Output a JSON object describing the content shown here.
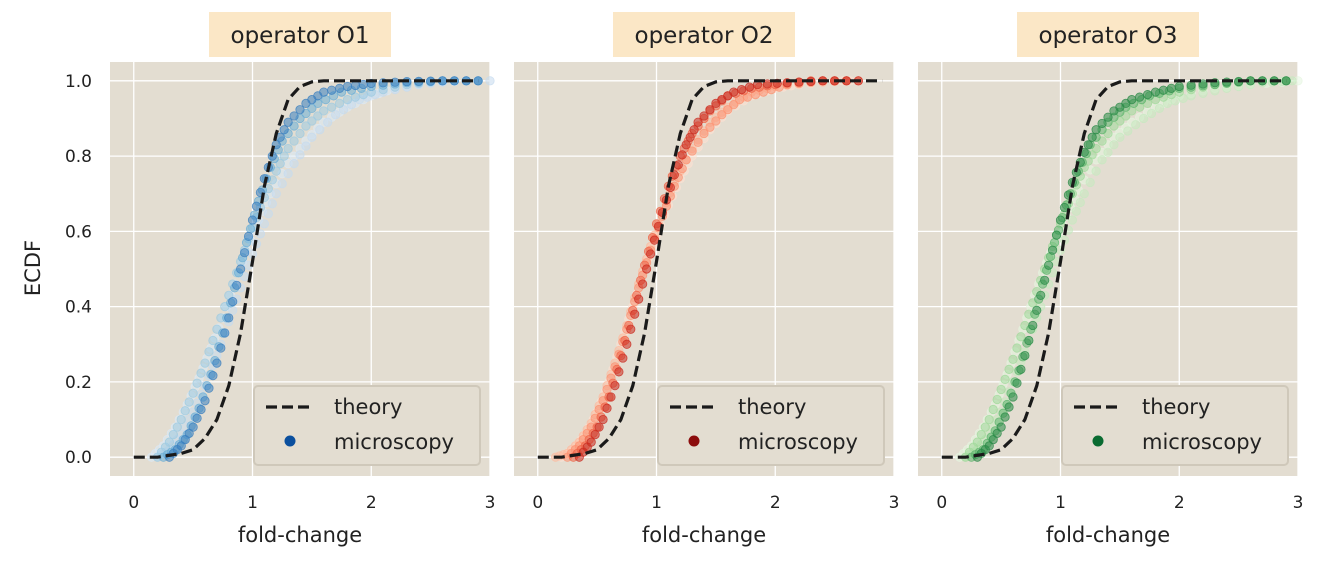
{
  "figure": {
    "ylabel": "ECDF",
    "xlabel": "fold-change"
  },
  "colors": {
    "background": "#e3ddd1",
    "title_box": "#fbe7c6",
    "grid": "#ffffff",
    "theory_line": "#1a1a1a"
  },
  "chart_data": [
    {
      "type": "scatter",
      "title": "operator O1",
      "xlabel": "fold-change",
      "ylabel": "ECDF",
      "xlim": [
        -0.2,
        3
      ],
      "ylim": [
        -0.05,
        1.05
      ],
      "xticks": [
        "0",
        "1",
        "2",
        "3"
      ],
      "yticks": [
        "0.0",
        "0.2",
        "0.4",
        "0.6",
        "0.8",
        "1.0"
      ],
      "grid": true,
      "legend": {
        "placement": "lower-right",
        "entries": [
          "theory",
          "microscopy"
        ]
      },
      "series": [
        {
          "name": "theory",
          "style": "dashed-line",
          "color": "#1a1a1a",
          "x": [
            0,
            0.2,
            0.4,
            0.5,
            0.6,
            0.7,
            0.8,
            0.9,
            1.0,
            1.1,
            1.2,
            1.3,
            1.4,
            1.5,
            1.6,
            1.8,
            2.0,
            2.5,
            2.9
          ],
          "y": [
            0,
            0.0,
            0.01,
            0.02,
            0.05,
            0.1,
            0.19,
            0.33,
            0.52,
            0.72,
            0.86,
            0.95,
            0.985,
            0.997,
            1.0,
            1.0,
            1.0,
            1.0,
            1.0
          ]
        },
        {
          "name": "microscopy",
          "style": "markers",
          "color": "#0b4f9e",
          "curves": [
            {
              "color": "#dbe9f6",
              "x": [
                0.15,
                0.25,
                0.35,
                0.45,
                0.55,
                0.65,
                0.75,
                0.85,
                0.95,
                1.05,
                1.15,
                1.3,
                1.45,
                1.6,
                1.8,
                2.0,
                2.2,
                2.5,
                2.8
              ],
              "y": [
                0.0,
                0.03,
                0.08,
                0.14,
                0.21,
                0.29,
                0.37,
                0.46,
                0.55,
                0.63,
                0.7,
                0.78,
                0.84,
                0.89,
                0.93,
                0.96,
                0.98,
                0.995,
                1.0
              ]
            },
            {
              "color": "#c6dbef",
              "x": [
                0.2,
                0.3,
                0.4,
                0.5,
                0.6,
                0.7,
                0.8,
                0.9,
                1.0,
                1.1,
                1.2,
                1.35,
                1.5,
                1.7,
                1.9,
                2.1,
                2.4,
                2.7,
                3.0
              ],
              "y": [
                0.0,
                0.02,
                0.06,
                0.12,
                0.19,
                0.27,
                0.36,
                0.45,
                0.54,
                0.62,
                0.7,
                0.78,
                0.85,
                0.91,
                0.95,
                0.97,
                0.99,
                1.0,
                1.0
              ]
            },
            {
              "color": "#9ecae1",
              "x": [
                0.2,
                0.3,
                0.4,
                0.5,
                0.6,
                0.7,
                0.8,
                0.9,
                1.0,
                1.1,
                1.2,
                1.3,
                1.45,
                1.6,
                1.8,
                2.0,
                2.3,
                2.6,
                2.9
              ],
              "y": [
                0.0,
                0.04,
                0.1,
                0.17,
                0.25,
                0.34,
                0.43,
                0.52,
                0.61,
                0.69,
                0.76,
                0.82,
                0.88,
                0.92,
                0.95,
                0.97,
                0.99,
                1.0,
                1.0
              ]
            },
            {
              "color": "#6baed6",
              "x": [
                0.25,
                0.35,
                0.45,
                0.55,
                0.65,
                0.75,
                0.85,
                0.95,
                1.05,
                1.15,
                1.25,
                1.4,
                1.55,
                1.75,
                2.0,
                2.3,
                2.6,
                2.9
              ],
              "y": [
                0.0,
                0.02,
                0.06,
                0.13,
                0.22,
                0.33,
                0.45,
                0.57,
                0.68,
                0.77,
                0.84,
                0.9,
                0.94,
                0.97,
                0.985,
                0.995,
                1.0,
                1.0
              ]
            },
            {
              "color": "#3b7fbf",
              "x": [
                0.3,
                0.4,
                0.5,
                0.6,
                0.7,
                0.8,
                0.9,
                1.0,
                1.1,
                1.2,
                1.3,
                1.45,
                1.6,
                1.8,
                2.0,
                2.3,
                2.6,
                2.9
              ],
              "y": [
                0.0,
                0.03,
                0.08,
                0.15,
                0.25,
                0.37,
                0.5,
                0.63,
                0.74,
                0.83,
                0.89,
                0.94,
                0.97,
                0.985,
                0.993,
                0.998,
                1.0,
                1.0
              ]
            }
          ]
        }
      ]
    },
    {
      "type": "scatter",
      "title": "operator O2",
      "xlabel": "fold-change",
      "ylabel": "",
      "xlim": [
        -0.2,
        3
      ],
      "ylim": [
        -0.05,
        1.05
      ],
      "xticks": [
        "0",
        "1",
        "2",
        "3"
      ],
      "yticks": [],
      "grid": true,
      "legend": {
        "placement": "lower-right",
        "entries": [
          "theory",
          "microscopy"
        ]
      },
      "series": [
        {
          "name": "theory",
          "style": "dashed-line",
          "color": "#1a1a1a",
          "x": [
            0,
            0.2,
            0.4,
            0.5,
            0.6,
            0.7,
            0.8,
            0.9,
            1.0,
            1.1,
            1.2,
            1.3,
            1.4,
            1.5,
            1.6,
            1.8,
            2.0,
            2.5,
            2.9
          ],
          "y": [
            0,
            0.0,
            0.01,
            0.02,
            0.05,
            0.1,
            0.19,
            0.33,
            0.52,
            0.72,
            0.86,
            0.95,
            0.985,
            0.997,
            1.0,
            1.0,
            1.0,
            1.0,
            1.0
          ]
        },
        {
          "name": "microscopy",
          "style": "markers",
          "color": "#8c0d0d",
          "curves": [
            {
              "color": "#fde0d2",
              "x": [
                0.2,
                0.3,
                0.4,
                0.5,
                0.6,
                0.7,
                0.8,
                0.9,
                1.0,
                1.1,
                1.2,
                1.3,
                1.45,
                1.6,
                1.8,
                2.0,
                2.2,
                2.5,
                2.7
              ],
              "y": [
                0.0,
                0.02,
                0.06,
                0.12,
                0.2,
                0.3,
                0.4,
                0.5,
                0.59,
                0.67,
                0.74,
                0.8,
                0.87,
                0.92,
                0.96,
                0.98,
                0.99,
                1.0,
                1.0
              ]
            },
            {
              "color": "#fcbba1",
              "x": [
                0.15,
                0.25,
                0.35,
                0.45,
                0.55,
                0.65,
                0.75,
                0.85,
                0.95,
                1.05,
                1.15,
                1.3,
                1.45,
                1.6,
                1.8,
                2.0,
                2.3,
                2.6
              ],
              "y": [
                0.0,
                0.01,
                0.04,
                0.09,
                0.16,
                0.25,
                0.35,
                0.46,
                0.56,
                0.65,
                0.73,
                0.82,
                0.89,
                0.93,
                0.97,
                0.985,
                0.995,
                1.0
              ]
            },
            {
              "color": "#fc9272",
              "x": [
                0.25,
                0.35,
                0.45,
                0.55,
                0.65,
                0.75,
                0.85,
                0.95,
                1.05,
                1.15,
                1.25,
                1.4,
                1.55,
                1.7,
                1.9,
                2.1,
                2.4,
                2.7
              ],
              "y": [
                0.0,
                0.03,
                0.08,
                0.15,
                0.24,
                0.34,
                0.45,
                0.55,
                0.64,
                0.72,
                0.79,
                0.86,
                0.91,
                0.95,
                0.97,
                0.99,
                1.0,
                1.0
              ]
            },
            {
              "color": "#ef6548",
              "x": [
                0.3,
                0.4,
                0.5,
                0.6,
                0.7,
                0.8,
                0.9,
                1.0,
                1.1,
                1.2,
                1.3,
                1.45,
                1.6,
                1.8,
                2.0,
                2.3,
                2.6
              ],
              "y": [
                0.0,
                0.03,
                0.08,
                0.16,
                0.27,
                0.39,
                0.51,
                0.62,
                0.72,
                0.8,
                0.86,
                0.92,
                0.96,
                0.98,
                0.99,
                1.0,
                1.0
              ]
            },
            {
              "color": "#cb2a1f",
              "x": [
                0.35,
                0.45,
                0.55,
                0.65,
                0.75,
                0.85,
                0.95,
                1.05,
                1.15,
                1.25,
                1.35,
                1.5,
                1.65,
                1.85,
                2.1,
                2.4,
                2.7
              ],
              "y": [
                0.0,
                0.04,
                0.1,
                0.19,
                0.3,
                0.42,
                0.54,
                0.65,
                0.75,
                0.83,
                0.89,
                0.94,
                0.97,
                0.99,
                0.995,
                1.0,
                1.0
              ]
            }
          ]
        }
      ]
    },
    {
      "type": "scatter",
      "title": "operator O3",
      "xlabel": "fold-change",
      "ylabel": "",
      "xlim": [
        -0.2,
        3
      ],
      "ylim": [
        -0.05,
        1.05
      ],
      "xticks": [
        "0",
        "1",
        "2",
        "3"
      ],
      "yticks": [],
      "grid": true,
      "legend": {
        "placement": "lower-right",
        "entries": [
          "theory",
          "microscopy"
        ]
      },
      "series": [
        {
          "name": "theory",
          "style": "dashed-line",
          "color": "#1a1a1a",
          "x": [
            0,
            0.2,
            0.4,
            0.5,
            0.6,
            0.7,
            0.8,
            0.9,
            1.0,
            1.1,
            1.2,
            1.3,
            1.4,
            1.5,
            1.6,
            1.8,
            2.0,
            2.5,
            2.9
          ],
          "y": [
            0,
            0.0,
            0.01,
            0.02,
            0.05,
            0.1,
            0.19,
            0.33,
            0.52,
            0.72,
            0.86,
            0.95,
            0.985,
            0.997,
            1.0,
            1.0,
            1.0,
            1.0,
            1.0
          ]
        },
        {
          "name": "microscopy",
          "style": "markers",
          "color": "#0a6b31",
          "curves": [
            {
              "color": "#e5f5e0",
              "x": [
                0.15,
                0.25,
                0.35,
                0.45,
                0.55,
                0.65,
                0.75,
                0.85,
                0.95,
                1.05,
                1.15,
                1.3,
                1.45,
                1.6,
                1.8,
                2.0,
                2.3,
                2.6,
                3.0
              ],
              "y": [
                0.0,
                0.03,
                0.08,
                0.14,
                0.22,
                0.31,
                0.4,
                0.49,
                0.57,
                0.64,
                0.71,
                0.79,
                0.85,
                0.89,
                0.93,
                0.96,
                0.98,
                0.99,
                1.0
              ]
            },
            {
              "color": "#c7e9c0",
              "x": [
                0.2,
                0.3,
                0.4,
                0.5,
                0.6,
                0.7,
                0.8,
                0.9,
                1.0,
                1.1,
                1.2,
                1.35,
                1.5,
                1.7,
                1.9,
                2.1,
                2.4,
                2.7,
                2.95
              ],
              "y": [
                0.0,
                0.02,
                0.06,
                0.12,
                0.2,
                0.28,
                0.37,
                0.46,
                0.55,
                0.63,
                0.7,
                0.79,
                0.85,
                0.9,
                0.94,
                0.96,
                0.98,
                0.995,
                1.0
              ]
            },
            {
              "color": "#a1d99b",
              "x": [
                0.2,
                0.3,
                0.4,
                0.5,
                0.6,
                0.7,
                0.8,
                0.9,
                1.0,
                1.1,
                1.2,
                1.3,
                1.45,
                1.6,
                1.8,
                2.0,
                2.3,
                2.6,
                2.9
              ],
              "y": [
                0.0,
                0.04,
                0.1,
                0.18,
                0.26,
                0.35,
                0.44,
                0.53,
                0.62,
                0.7,
                0.77,
                0.82,
                0.88,
                0.92,
                0.95,
                0.97,
                0.99,
                1.0,
                1.0
              ]
            },
            {
              "color": "#5fb46e",
              "x": [
                0.25,
                0.35,
                0.45,
                0.55,
                0.65,
                0.75,
                0.85,
                0.95,
                1.05,
                1.15,
                1.25,
                1.4,
                1.55,
                1.75,
                2.0,
                2.3,
                2.6,
                2.9
              ],
              "y": [
                0.0,
                0.02,
                0.07,
                0.14,
                0.23,
                0.34,
                0.46,
                0.57,
                0.67,
                0.76,
                0.83,
                0.89,
                0.93,
                0.96,
                0.98,
                0.99,
                1.0,
                1.0
              ]
            },
            {
              "color": "#2a8a47",
              "x": [
                0.3,
                0.4,
                0.5,
                0.6,
                0.7,
                0.8,
                0.9,
                1.0,
                1.1,
                1.2,
                1.3,
                1.45,
                1.6,
                1.8,
                2.0,
                2.3,
                2.6,
                2.9
              ],
              "y": [
                0.0,
                0.03,
                0.08,
                0.16,
                0.27,
                0.39,
                0.51,
                0.63,
                0.73,
                0.81,
                0.87,
                0.92,
                0.95,
                0.97,
                0.985,
                0.995,
                1.0,
                1.0
              ]
            }
          ]
        }
      ]
    }
  ]
}
